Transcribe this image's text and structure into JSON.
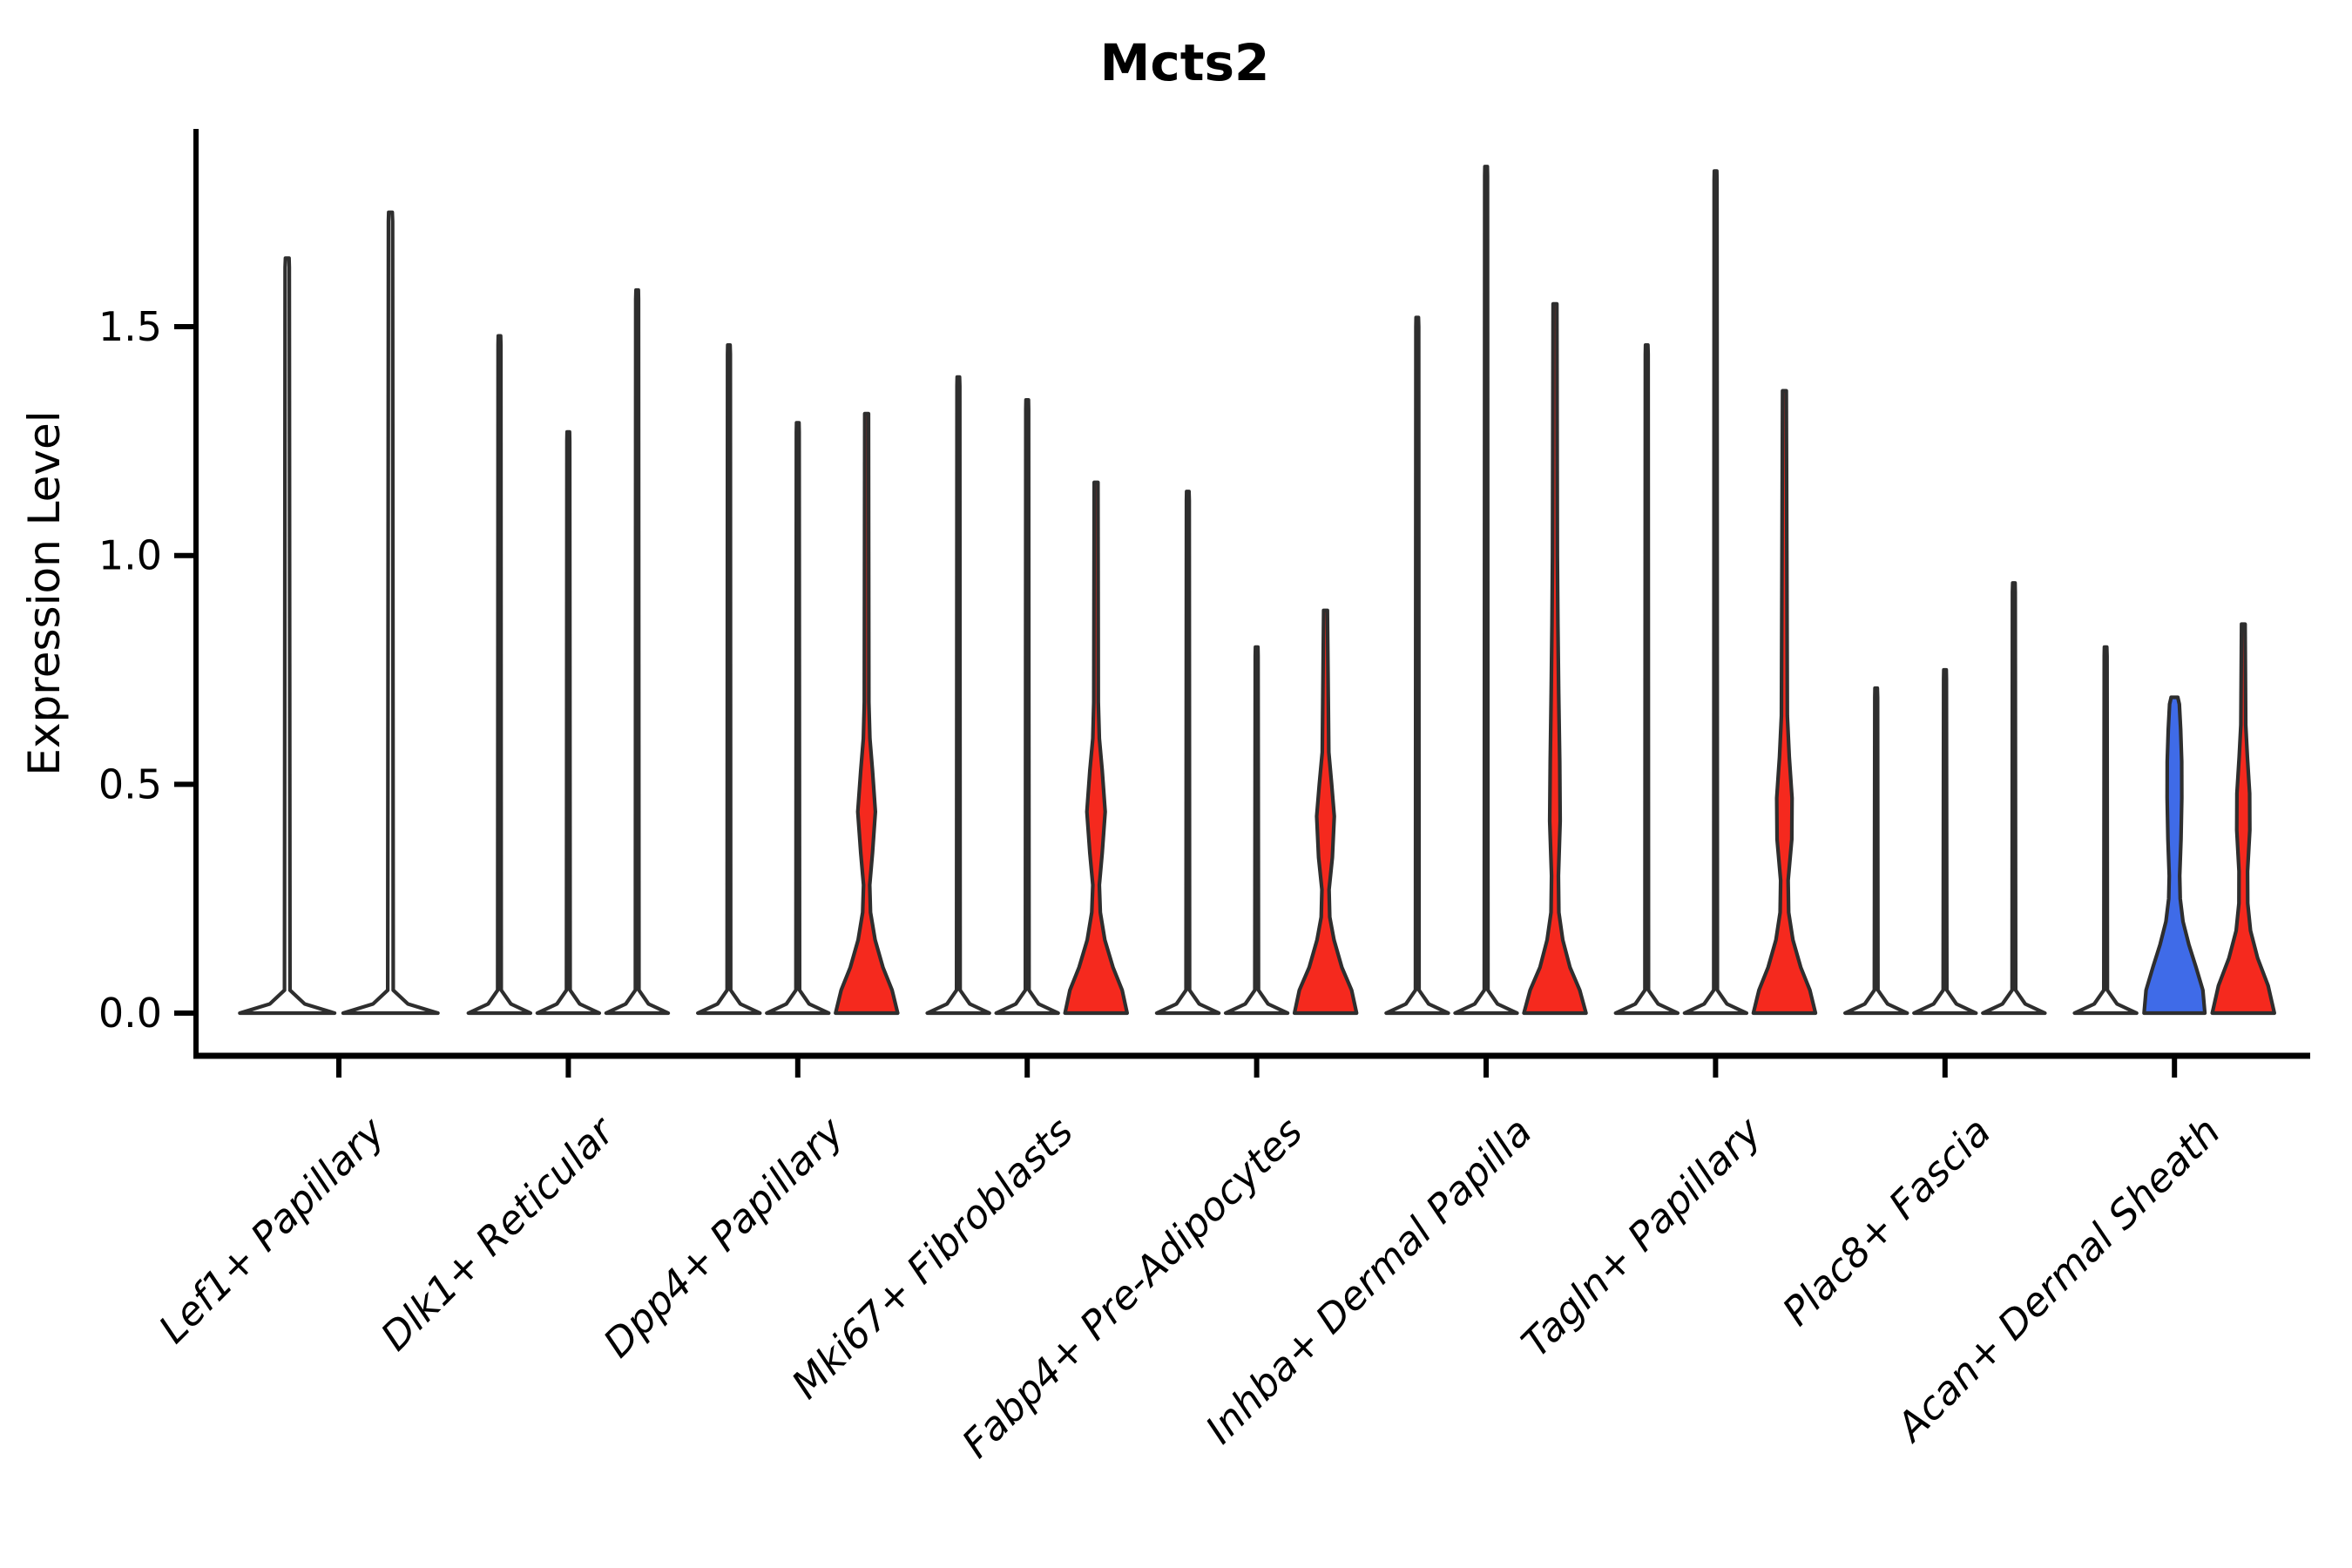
{
  "title": "Mcts2",
  "axes": {
    "ylabel": "Expression Level",
    "y_tick_labels": [
      "0.0",
      "0.5",
      "1.0",
      "1.5"
    ]
  },
  "style": {
    "red": "#F5291E",
    "blue": "#3F6BE8",
    "white": "#FFFFFF",
    "violin_outline": "#2E2E2E",
    "axis_color": "#000000",
    "background": "#FFFFFF"
  },
  "chart_data": {
    "type": "violin",
    "title": "Mcts2",
    "xlabel": "",
    "ylabel": "Expression Level",
    "ylim": [
      -0.09,
      1.93
    ],
    "y_ticks": [
      0.0,
      0.5,
      1.0,
      1.5
    ],
    "grid": false,
    "legend": null,
    "categories": [
      "Lef1+ Papillary",
      "Dlk1+ Reticular",
      "Dpp4+ Papillary",
      "Mki67+ Fibroblasts",
      "Fabp4+ Pre-Adipocytes",
      "Inhba+ Dermal Papilla",
      "Tagln+ Papillary",
      "Plac8+ Fascia",
      "Acan+ Dermal Sheath"
    ],
    "groups": [
      {
        "category": "Lef1+ Papillary",
        "violins": [
          {
            "max": 1.65,
            "fill": "white",
            "shape": "spike"
          },
          {
            "max": 1.75,
            "fill": "white",
            "shape": "spike"
          }
        ]
      },
      {
        "category": "Dlk1+ Reticular",
        "violins": [
          {
            "max": 1.48,
            "fill": "white",
            "shape": "spike"
          },
          {
            "max": 1.27,
            "fill": "white",
            "shape": "spike"
          },
          {
            "max": 1.58,
            "fill": "white",
            "shape": "spike"
          }
        ]
      },
      {
        "category": "Dpp4+ Papillary",
        "violins": [
          {
            "max": 1.46,
            "fill": "white",
            "shape": "spike"
          },
          {
            "max": 1.29,
            "fill": "white",
            "shape": "spike"
          },
          {
            "max": 1.31,
            "fill": "red",
            "shape": "body",
            "profile": [
              [
                0,
                0.95
              ],
              [
                0.05,
                0.78
              ],
              [
                0.1,
                0.5
              ],
              [
                0.16,
                0.26
              ],
              [
                0.22,
                0.12
              ],
              [
                0.28,
                0.095
              ],
              [
                0.35,
                0.18
              ],
              [
                0.44,
                0.27
              ],
              [
                0.53,
                0.18
              ],
              [
                0.6,
                0.1
              ],
              [
                0.68,
                0.07
              ],
              [
                1.31,
                0.057
              ]
            ]
          }
        ]
      },
      {
        "category": "Mki67+ Fibroblasts",
        "violins": [
          {
            "max": 1.39,
            "fill": "white",
            "shape": "spike"
          },
          {
            "max": 1.34,
            "fill": "white",
            "shape": "spike"
          },
          {
            "max": 1.16,
            "fill": "red",
            "shape": "body",
            "profile": [
              [
                0,
                0.95
              ],
              [
                0.05,
                0.8
              ],
              [
                0.1,
                0.52
              ],
              [
                0.16,
                0.27
              ],
              [
                0.22,
                0.13
              ],
              [
                0.28,
                0.1
              ],
              [
                0.35,
                0.19
              ],
              [
                0.44,
                0.28
              ],
              [
                0.53,
                0.19
              ],
              [
                0.6,
                0.1
              ],
              [
                0.68,
                0.07
              ],
              [
                1.16,
                0.057
              ]
            ]
          }
        ]
      },
      {
        "category": "Fabp4+ Pre-Adipocytes",
        "violins": [
          {
            "max": 1.14,
            "fill": "white",
            "shape": "spike"
          },
          {
            "max": 0.8,
            "fill": "white",
            "shape": "spike"
          },
          {
            "max": 0.88,
            "fill": "red",
            "shape": "body",
            "profile": [
              [
                0,
                0.95
              ],
              [
                0.05,
                0.8
              ],
              [
                0.1,
                0.5
              ],
              [
                0.16,
                0.26
              ],
              [
                0.21,
                0.13
              ],
              [
                0.27,
                0.11
              ],
              [
                0.34,
                0.21
              ],
              [
                0.43,
                0.27
              ],
              [
                0.5,
                0.19
              ],
              [
                0.57,
                0.1
              ],
              [
                0.88,
                0.057
              ]
            ]
          }
        ]
      },
      {
        "category": "Inhba+ Dermal Papilla",
        "violins": [
          {
            "max": 1.52,
            "fill": "white",
            "shape": "spike"
          },
          {
            "max": 1.85,
            "fill": "white",
            "shape": "spike"
          },
          {
            "max": 1.55,
            "fill": "red",
            "shape": "body",
            "profile": [
              [
                0,
                0.95
              ],
              [
                0.05,
                0.76
              ],
              [
                0.1,
                0.46
              ],
              [
                0.16,
                0.24
              ],
              [
                0.22,
                0.12
              ],
              [
                0.3,
                0.105
              ],
              [
                0.42,
                0.16
              ],
              [
                0.55,
                0.145
              ],
              [
                0.7,
                0.115
              ],
              [
                0.85,
                0.09
              ],
              [
                1.0,
                0.075
              ],
              [
                1.55,
                0.057
              ]
            ]
          }
        ]
      },
      {
        "category": "Tagln+ Papillary",
        "violins": [
          {
            "max": 1.46,
            "fill": "white",
            "shape": "spike"
          },
          {
            "max": 1.84,
            "fill": "white",
            "shape": "spike"
          },
          {
            "max": 1.36,
            "fill": "red",
            "shape": "body",
            "profile": [
              [
                0,
                0.95
              ],
              [
                0.05,
                0.78
              ],
              [
                0.1,
                0.5
              ],
              [
                0.16,
                0.26
              ],
              [
                0.22,
                0.13
              ],
              [
                0.29,
                0.115
              ],
              [
                0.38,
                0.225
              ],
              [
                0.47,
                0.235
              ],
              [
                0.56,
                0.15
              ],
              [
                0.65,
                0.09
              ],
              [
                1.36,
                0.057
              ]
            ]
          }
        ]
      },
      {
        "category": "Plac8+ Fascia",
        "violins": [
          {
            "max": 0.71,
            "fill": "white",
            "shape": "spike"
          },
          {
            "max": 0.75,
            "fill": "white",
            "shape": "spike"
          },
          {
            "max": 0.94,
            "fill": "white",
            "shape": "spike"
          }
        ]
      },
      {
        "category": "Acan+ Dermal Sheath",
        "violins": [
          {
            "max": 0.8,
            "fill": "white",
            "shape": "spike"
          },
          {
            "max": 0.69,
            "fill": "blue",
            "shape": "body",
            "profile": [
              [
                0,
                0.93
              ],
              [
                0.05,
                0.87
              ],
              [
                0.1,
                0.66
              ],
              [
                0.15,
                0.44
              ],
              [
                0.2,
                0.26
              ],
              [
                0.25,
                0.175
              ],
              [
                0.3,
                0.16
              ],
              [
                0.38,
                0.2
              ],
              [
                0.47,
                0.225
              ],
              [
                0.55,
                0.22
              ],
              [
                0.62,
                0.19
              ],
              [
                0.675,
                0.15
              ],
              [
                0.69,
                0.1
              ]
            ]
          },
          {
            "max": 0.85,
            "fill": "red",
            "shape": "body",
            "profile": [
              [
                0,
                0.95
              ],
              [
                0.06,
                0.76
              ],
              [
                0.12,
                0.44
              ],
              [
                0.18,
                0.22
              ],
              [
                0.24,
                0.135
              ],
              [
                0.31,
                0.13
              ],
              [
                0.4,
                0.2
              ],
              [
                0.48,
                0.195
              ],
              [
                0.56,
                0.125
              ],
              [
                0.63,
                0.075
              ],
              [
                0.85,
                0.055
              ]
            ]
          }
        ]
      }
    ]
  }
}
